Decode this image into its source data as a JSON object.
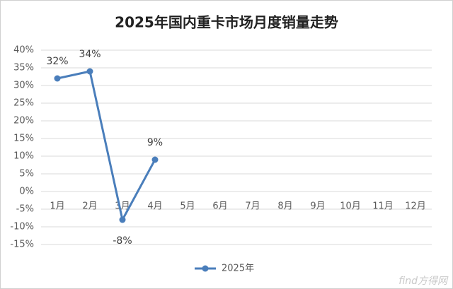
{
  "chart_data": {
    "type": "line",
    "title": "2025年国内重卡市场月度销量走势",
    "categories": [
      "1月",
      "2月",
      "3月",
      "4月",
      "5月",
      "6月",
      "7月",
      "8月",
      "9月",
      "10月",
      "11月",
      "12月"
    ],
    "series": [
      {
        "name": "2025年",
        "color": "#4a7ebb",
        "values": [
          32,
          34,
          -8,
          9,
          null,
          null,
          null,
          null,
          null,
          null,
          null,
          null
        ],
        "value_labels": [
          "32%",
          "34%",
          "-8%",
          "9%",
          null,
          null,
          null,
          null,
          null,
          null,
          null,
          null
        ]
      }
    ],
    "ylim": [
      -15,
      40
    ],
    "yticks": [
      {
        "value": -15,
        "label": "-15%"
      },
      {
        "value": -10,
        "label": "-10%"
      },
      {
        "value": -5,
        "label": "-5%"
      },
      {
        "value": 0,
        "label": "0%"
      },
      {
        "value": 5,
        "label": "5%"
      },
      {
        "value": 10,
        "label": "10%"
      },
      {
        "value": 15,
        "label": "15%"
      },
      {
        "value": 20,
        "label": "20%"
      },
      {
        "value": 25,
        "label": "25%"
      },
      {
        "value": 30,
        "label": "30%"
      },
      {
        "value": 35,
        "label": "35%"
      },
      {
        "value": 40,
        "label": "40%"
      }
    ],
    "grid": true,
    "legend": "bottom",
    "watermark": "find方得网"
  }
}
